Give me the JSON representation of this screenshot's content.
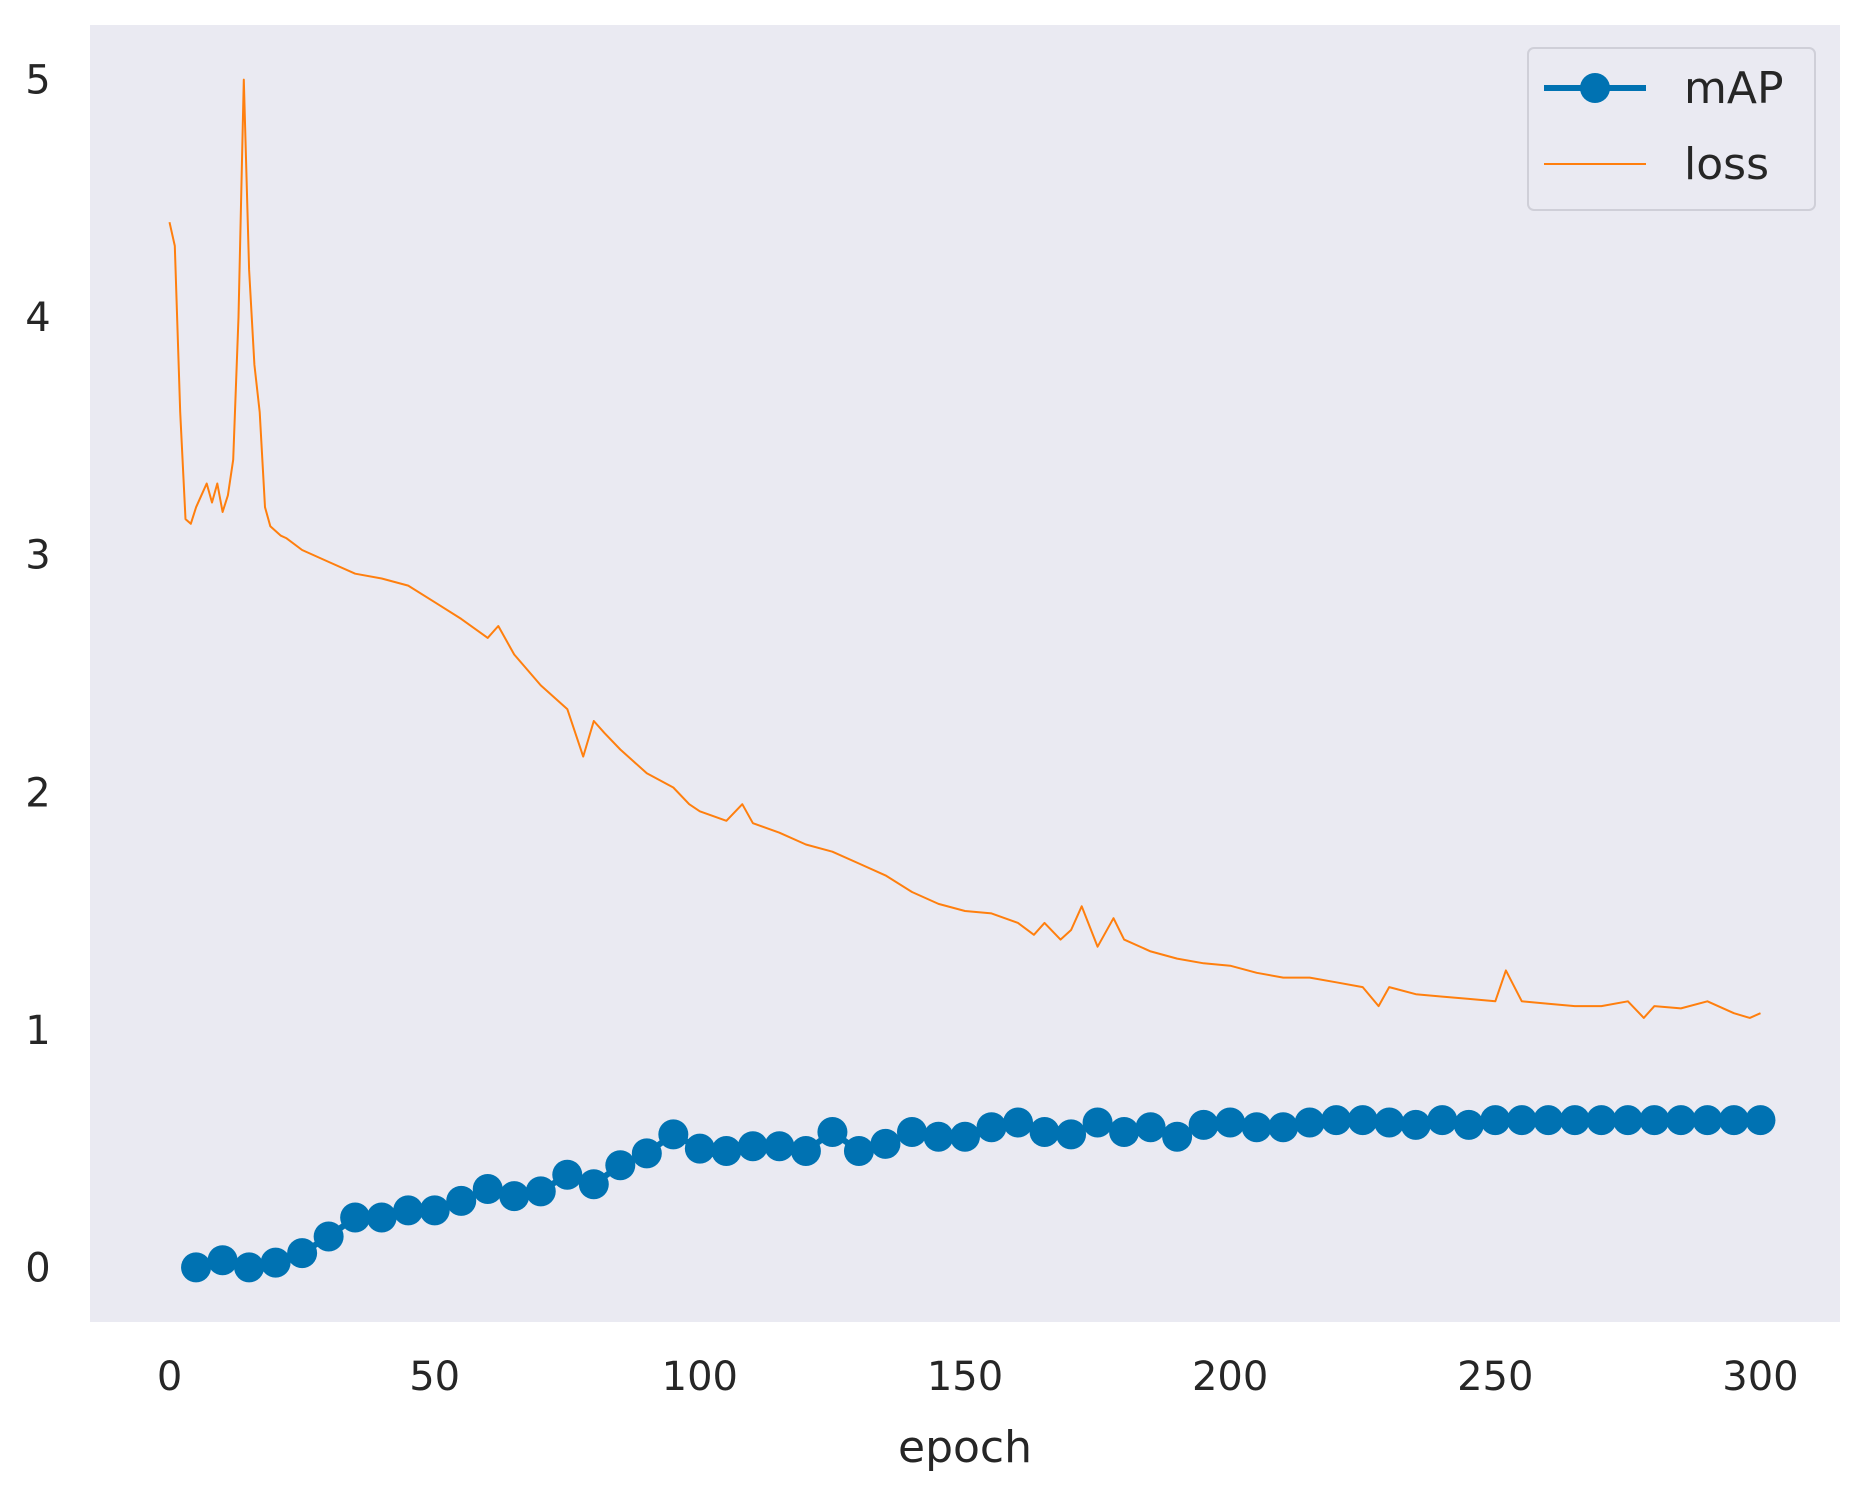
{
  "chart_data": {
    "type": "line",
    "title": "",
    "xlabel": "epoch",
    "ylabel": "",
    "xlim": [
      -15,
      315
    ],
    "ylim": [
      -0.23,
      5.23
    ],
    "xticks": [
      0,
      50,
      100,
      150,
      200,
      250,
      300
    ],
    "yticks": [
      0,
      1,
      2,
      3,
      4,
      5
    ],
    "grid": false,
    "background": "#eaeaf2",
    "legend": {
      "position": "top-right"
    },
    "series": [
      {
        "name": "mAP",
        "style": "line-markers",
        "color": "#0072b2",
        "x": [
          5,
          10,
          15,
          20,
          25,
          30,
          35,
          40,
          45,
          50,
          55,
          60,
          65,
          70,
          75,
          80,
          85,
          90,
          95,
          100,
          105,
          110,
          115,
          120,
          125,
          130,
          135,
          140,
          145,
          150,
          155,
          160,
          165,
          170,
          175,
          180,
          185,
          190,
          195,
          200,
          205,
          210,
          215,
          220,
          225,
          230,
          235,
          240,
          245,
          250,
          255,
          260,
          265,
          270,
          275,
          280,
          285,
          290,
          295,
          300
        ],
        "y": [
          0.0,
          0.03,
          0.0,
          0.02,
          0.06,
          0.13,
          0.21,
          0.21,
          0.24,
          0.24,
          0.28,
          0.33,
          0.3,
          0.32,
          0.39,
          0.35,
          0.43,
          0.48,
          0.56,
          0.5,
          0.49,
          0.51,
          0.51,
          0.49,
          0.57,
          0.49,
          0.52,
          0.57,
          0.55,
          0.55,
          0.59,
          0.61,
          0.57,
          0.56,
          0.61,
          0.57,
          0.59,
          0.55,
          0.6,
          0.61,
          0.59,
          0.59,
          0.61,
          0.62,
          0.62,
          0.61,
          0.6,
          0.62,
          0.6,
          0.62,
          0.62,
          0.62,
          0.62,
          0.62,
          0.62,
          0.62,
          0.62,
          0.62,
          0.62,
          0.62
        ]
      },
      {
        "name": "loss",
        "style": "line",
        "color": "#ff7f0e",
        "x": [
          0,
          1,
          2,
          3,
          4,
          5,
          6,
          7,
          8,
          9,
          10,
          11,
          12,
          13,
          14,
          15,
          16,
          17,
          18,
          19,
          20,
          21,
          22,
          25,
          30,
          35,
          40,
          45,
          50,
          55,
          60,
          62,
          65,
          70,
          75,
          78,
          80,
          82,
          85,
          90,
          95,
          98,
          100,
          105,
          108,
          110,
          115,
          120,
          125,
          130,
          135,
          140,
          145,
          150,
          155,
          160,
          163,
          165,
          168,
          170,
          172,
          175,
          178,
          180,
          185,
          190,
          195,
          200,
          205,
          210,
          215,
          220,
          225,
          228,
          230,
          235,
          240,
          245,
          250,
          252,
          255,
          260,
          265,
          270,
          275,
          278,
          280,
          285,
          290,
          295,
          298,
          300
        ],
        "y": [
          4.4,
          4.3,
          3.6,
          3.15,
          3.13,
          3.2,
          3.25,
          3.3,
          3.22,
          3.3,
          3.18,
          3.25,
          3.4,
          4.0,
          5.0,
          4.2,
          3.8,
          3.6,
          3.2,
          3.12,
          3.1,
          3.08,
          3.07,
          3.02,
          2.97,
          2.92,
          2.9,
          2.87,
          2.8,
          2.73,
          2.65,
          2.7,
          2.58,
          2.45,
          2.35,
          2.15,
          2.3,
          2.25,
          2.18,
          2.08,
          2.02,
          1.95,
          1.92,
          1.88,
          1.95,
          1.87,
          1.83,
          1.78,
          1.75,
          1.7,
          1.65,
          1.58,
          1.53,
          1.5,
          1.49,
          1.45,
          1.4,
          1.45,
          1.38,
          1.42,
          1.52,
          1.35,
          1.47,
          1.38,
          1.33,
          1.3,
          1.28,
          1.27,
          1.24,
          1.22,
          1.22,
          1.2,
          1.18,
          1.1,
          1.18,
          1.15,
          1.14,
          1.13,
          1.12,
          1.25,
          1.12,
          1.11,
          1.1,
          1.1,
          1.12,
          1.05,
          1.1,
          1.09,
          1.12,
          1.07,
          1.05,
          1.07
        ]
      }
    ]
  }
}
